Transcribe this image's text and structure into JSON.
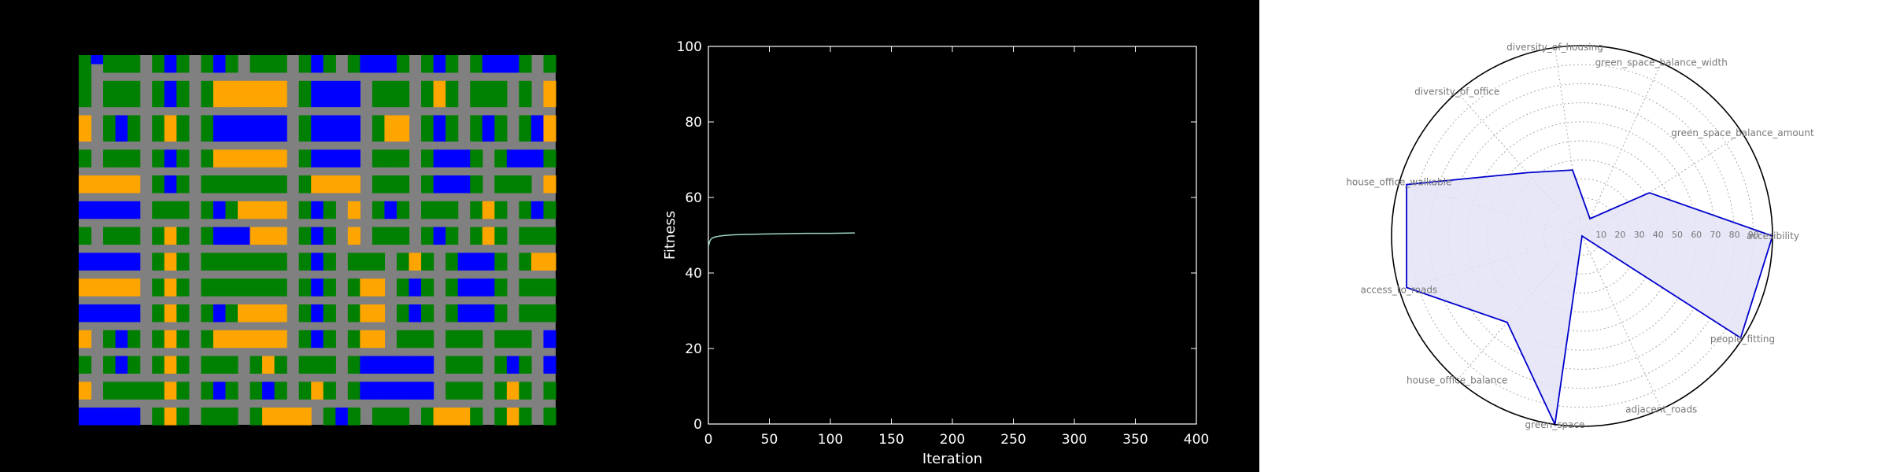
{
  "colors": {
    "background": "#000000",
    "road": "#808080",
    "green_space": "#008000",
    "housing": "#FFA500",
    "office": "#0000FF",
    "fitness_line": "#9ed6c8",
    "radar_line": "#0000cc",
    "radar_fill": "#e3e3f7",
    "radar_label": "#777777"
  },
  "chart_data": [
    {
      "type": "heatmap",
      "title": "",
      "legend": [
        "road",
        "green_space",
        "housing",
        "office"
      ],
      "cell_codes": {
        "R": "road",
        "G": "green_space",
        "H": "housing",
        "O": "office"
      },
      "grid": [
        "GOGGGRGOGRGOGRGGGRGOGRGOOOGRGOGRGOOOGRG",
        "GRGGGRGOGRGOGRGGGRGOGRGOOOGRGOGRGOOOGRG",
        "GRRRRRRRRRRRRRRRRRRRRRRRRRRRRRRRRRRRRRR",
        "GRGGGRGOGRGHHHHHHRGOOOORGGGRGHGRGGGRGRH",
        "GRGGGRGOGRGHHHHHHRGOOOORGGGRGHGRGGGRGRH",
        "GRGGGRGOGRGHHHHHHRGOOOORGGGRGHGRGGGRGRH",
        "RRRRRRRRRRRRRRRRRRRRRRRRRRRRRRRRRRRRRRR",
        "HRGOGRGHGRGOOOOOORGOOOORGHHRGOGRGOGRGOH",
        "HRGOGRGHGRGOOOOOORGOOOORGHHRGOGRGOGRGOH",
        "HRGOGRGHGRGOOOOOORGOOOORGHHRGOGRGOGRGOH",
        "RRRRRRRRRRRRRRRRRRRRRRRRRRRRRRRRRRRRRRR",
        "GRGGGRGOGRGHHHHHHRGOOOORGGGRGOOOGRGOOOG",
        "GRGGGRGOGRGHHHHHHRGOOOORGGGRGOOOGRGOOOG",
        "RRRRRRRRRRRRRRRRRRRRRRRRRRRRRRRRRRRRRRR",
        "HHHHHRGOGRGGGGGGGRGHHHHRGGGRGOOOGRGGGRH",
        "HHHHHRGOGRGGGGGGGRGHHHHRGGGRGOOOGRGGGRH",
        "RRRRRRRRRRRRRRRRRRRRRRRRRRRRRRRRRRRRRRR",
        "OOOOORGGGRGOGHHHHRGOGRHRGOGRGGGRGHGRGOG",
        "OOOOORGGGRGOGHHHHRGOGRHRGOGRGGGRGHGRGOG",
        "RRRRRRRRRRRRRRRRRRRRRRRRRRRRRRRRRRRRRRR",
        "GRGGGRGHGRGOOOHHHRGOGRHRGGGRGOGRGHGRGGG",
        "GRGGGRGHGRGOOOHHHRGOGRHRGGGRGOGRGHGRGGG",
        "RRRRRRRRRRRRRRRRRRRRRRRRRRRRRRRRRRRRRRR",
        "OOOOORGHGRGGGGGGGRGOGRGGGRGHGRGOOOGRGHH",
        "OOOOORGHGRGGGGGGGRGOGRGGGRGHGRGOOOGRGHH",
        "RRRRRRRRRRRRRRRRRRRRRRRRRRRRRRRRRRRRRRR",
        "HHHHHRGHGRGGGGGGGRGOGRGHHRGOGRGOOOGRGGG",
        "HHHHHRGHGRGGGGGGGRGOGRGHHRGOGRGOOOGRGGG",
        "RRRRRRRRRRRRRRRRRRRRRRRRRRRRRRRRRRRRRRR",
        "OOOOORGHGRGOGHHHHRGOGRGHHRGOGRGOOOGRGGG",
        "OOOOORGHGRGOGHHHHRGOGRGHHRGOGRGOOOGRGGG",
        "RRRRRRRRRRRRRRRRRRRRRRRRRRRRRRRRRRRRRRR",
        "HRGOGRGHGRGHHHHHHRGOGRGHHRGGGRGGGRGGGRO",
        "HRGOGRGHGRGHHHHHHRGOGRGHHRGGGRGGGRGGGRO",
        "RRRRRRRRRRRRRRRRRRRRRRRRRRRRRRRRRRRRRRR",
        "GRGOGRGHGRGGGRGHGRGGGRGOOOOOORGGGRGOGRO",
        "GRGOGRGHGRGGGRGHGRGGGRGOOOOOORGGGRGOGRO",
        "RRRRRRRRRRRRRRRRRRRRRRRRRRRRRRRRRRRRRRR",
        "HRGGGGGHGRGOGRGOGRGHGRGOOOOOORGGGRGHGRG",
        "HRGGGGGHGRGOGRGOGRGHGRGOOOOOORGGGRGHGRG",
        "RRRRRRRRRRRRRRRRRRRRRRRRRRRRRRRRRRRRRRR",
        "OOOOORGHGRGGGRGHHHHRGOGRGGGRGHHHGRGHGRG",
        "OOOOORGHGRGGGRGHHHHRGOGRGGGRGHHHGRGHGRG"
      ]
    },
    {
      "type": "line",
      "title": "",
      "xlabel": "Iteration",
      "ylabel": "Fitness",
      "xlim": [
        0,
        400
      ],
      "ylim": [
        0,
        100
      ],
      "xticks": [
        0,
        50,
        100,
        150,
        200,
        250,
        300,
        350,
        400
      ],
      "yticks": [
        0,
        20,
        40,
        60,
        80,
        100
      ],
      "grid": false,
      "series": [
        {
          "x": [
            0,
            1,
            2,
            3,
            5,
            8,
            12,
            20,
            30,
            45,
            60,
            80,
            100,
            120
          ],
          "y": [
            47.0,
            48.3,
            48.9,
            49.2,
            49.5,
            49.7,
            49.9,
            50.1,
            50.2,
            50.3,
            50.4,
            50.5,
            50.5,
            50.6
          ]
        }
      ]
    },
    {
      "type": "radar",
      "title": "",
      "rlim": [
        0,
        100
      ],
      "rticks": [
        10,
        20,
        30,
        40,
        50,
        60,
        70,
        80,
        90
      ],
      "grid": true,
      "axes": [
        {
          "label": "accesibility",
          "value": 100
        },
        {
          "label": "green_space_balance_amount",
          "value": 42
        },
        {
          "label": "green_space_balance_width",
          "value": 10
        },
        {
          "label": "diversity_of_housing",
          "value": 35
        },
        {
          "label": "diversity_of_office",
          "value": 44
        },
        {
          "label": "house_office_walkable",
          "value": 96
        },
        {
          "label": "access_to_roads",
          "value": 96
        },
        {
          "label": "house_office_balance",
          "value": 60
        },
        {
          "label": "green_space",
          "value": 100
        },
        {
          "label": "adjacent_roads",
          "value": 0
        },
        {
          "label": "people_fitting",
          "value": 99
        }
      ]
    }
  ]
}
